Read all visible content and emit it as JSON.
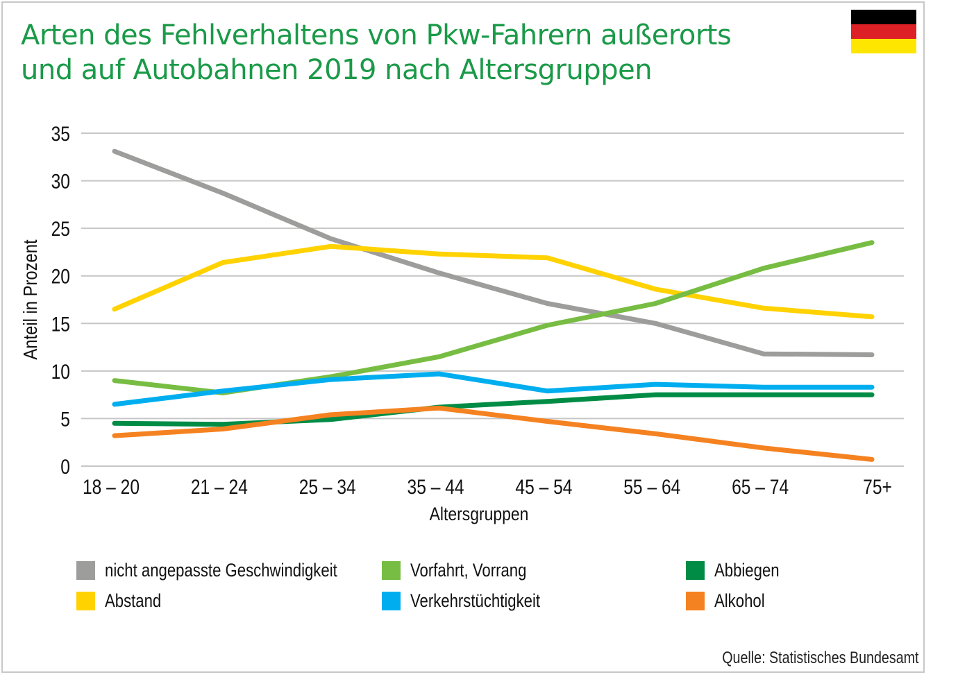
{
  "header": {
    "title_line1": "Arten des Fehlverhaltens von Pkw-Fahrern außerorts",
    "title_line2": "und auf Autobahnen 2019 nach Altersgruppen"
  },
  "flag": {
    "colors": [
      "#000000",
      "#dd1f26",
      "#ffe600"
    ]
  },
  "chart_data": {
    "type": "line",
    "title": "Arten des Fehlverhaltens von Pkw-Fahrern außerorts und auf Autobahnen 2019 nach Altersgruppen",
    "xlabel": "Altersgruppen",
    "ylabel": "Anteil in Prozent",
    "ylim": [
      0,
      35
    ],
    "yticks": [
      0,
      5,
      10,
      15,
      20,
      25,
      30,
      35
    ],
    "grid": true,
    "legend_position": "bottom",
    "categories": [
      "18 – 20",
      "21 – 24",
      "25 – 34",
      "35 – 44",
      "45 – 54",
      "55 – 64",
      "65 – 74",
      "75+"
    ],
    "series": [
      {
        "name": "nicht angepasste Geschwindigkeit",
        "color": "#9d9d9c",
        "values": [
          33.1,
          28.7,
          23.9,
          20.3,
          17.1,
          15.0,
          11.8,
          11.7
        ]
      },
      {
        "name": "Abstand",
        "color": "#ffd200",
        "values": [
          16.5,
          21.4,
          23.1,
          22.3,
          21.9,
          18.6,
          16.6,
          15.7
        ]
      },
      {
        "name": "Vorfahrt, Vorrang",
        "color": "#77bd43",
        "values": [
          9.0,
          7.7,
          9.4,
          11.5,
          14.8,
          17.1,
          20.8,
          23.5
        ]
      },
      {
        "name": "Verkehrstüchtigkeit",
        "color": "#00aeef",
        "values": [
          6.5,
          7.9,
          9.1,
          9.7,
          7.9,
          8.6,
          8.3,
          8.3
        ]
      },
      {
        "name": "Abbiegen",
        "color": "#008c45",
        "values": [
          4.5,
          4.4,
          4.9,
          6.2,
          6.8,
          7.5,
          7.5,
          7.5
        ]
      },
      {
        "name": "Alkohol",
        "color": "#f58220",
        "values": [
          3.2,
          3.9,
          5.4,
          6.1,
          4.7,
          3.4,
          1.9,
          0.7
        ]
      }
    ]
  },
  "legend": {
    "items": [
      {
        "label": "nicht angepasste Geschwindigkeit",
        "color": "#9d9d9c"
      },
      {
        "label": "Vorfahrt, Vorrang",
        "color": "#77bd43"
      },
      {
        "label": "Abbiegen",
        "color": "#008c45"
      },
      {
        "label": "Abstand",
        "color": "#ffd200"
      },
      {
        "label": "Verkehrstüchtigkeit",
        "color": "#00aeef"
      },
      {
        "label": "Alkohol",
        "color": "#f58220"
      }
    ]
  },
  "footer": {
    "source": "Quelle: Statistisches Bundesamt"
  }
}
